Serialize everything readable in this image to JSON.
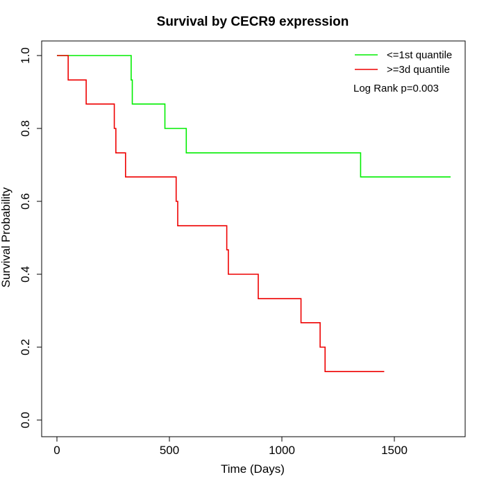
{
  "chart_data": {
    "type": "line",
    "title": "Survival by CECR9 expression",
    "xlabel": "Time (Days)",
    "ylabel": "Survival Probability",
    "xlim": [
      0,
      1750
    ],
    "ylim": [
      0,
      1.0
    ],
    "x_ticks": [
      0,
      500,
      1000,
      1500
    ],
    "x_tick_labels": [
      "0",
      "500",
      "1000",
      "1500"
    ],
    "y_ticks": [
      0,
      0.2,
      0.4,
      0.6,
      0.8,
      1.0
    ],
    "y_tick_labels": [
      "0.0",
      "0.2",
      "0.4",
      "0.6",
      "0.8",
      "1.0"
    ],
    "grid": false,
    "legend_position": "top-right",
    "annotation": "Log Rank p=0.003",
    "series": [
      {
        "name": "<=1st quantile",
        "color": "#00ee00",
        "step_x": [
          0,
          330,
          335,
          480,
          575,
          1350,
          1750
        ],
        "step_y": [
          1.0,
          0.933,
          0.867,
          0.8,
          0.733,
          0.667,
          0.667
        ]
      },
      {
        "name": ">=3d quantile",
        "color": "#ee0000",
        "step_x": [
          0,
          50,
          130,
          255,
          262,
          305,
          530,
          537,
          755,
          762,
          895,
          1085,
          1170,
          1192,
          1455
        ],
        "step_y": [
          1.0,
          0.933,
          0.867,
          0.8,
          0.733,
          0.667,
          0.6,
          0.533,
          0.467,
          0.4,
          0.333,
          0.267,
          0.2,
          0.133,
          0.133
        ]
      }
    ]
  }
}
